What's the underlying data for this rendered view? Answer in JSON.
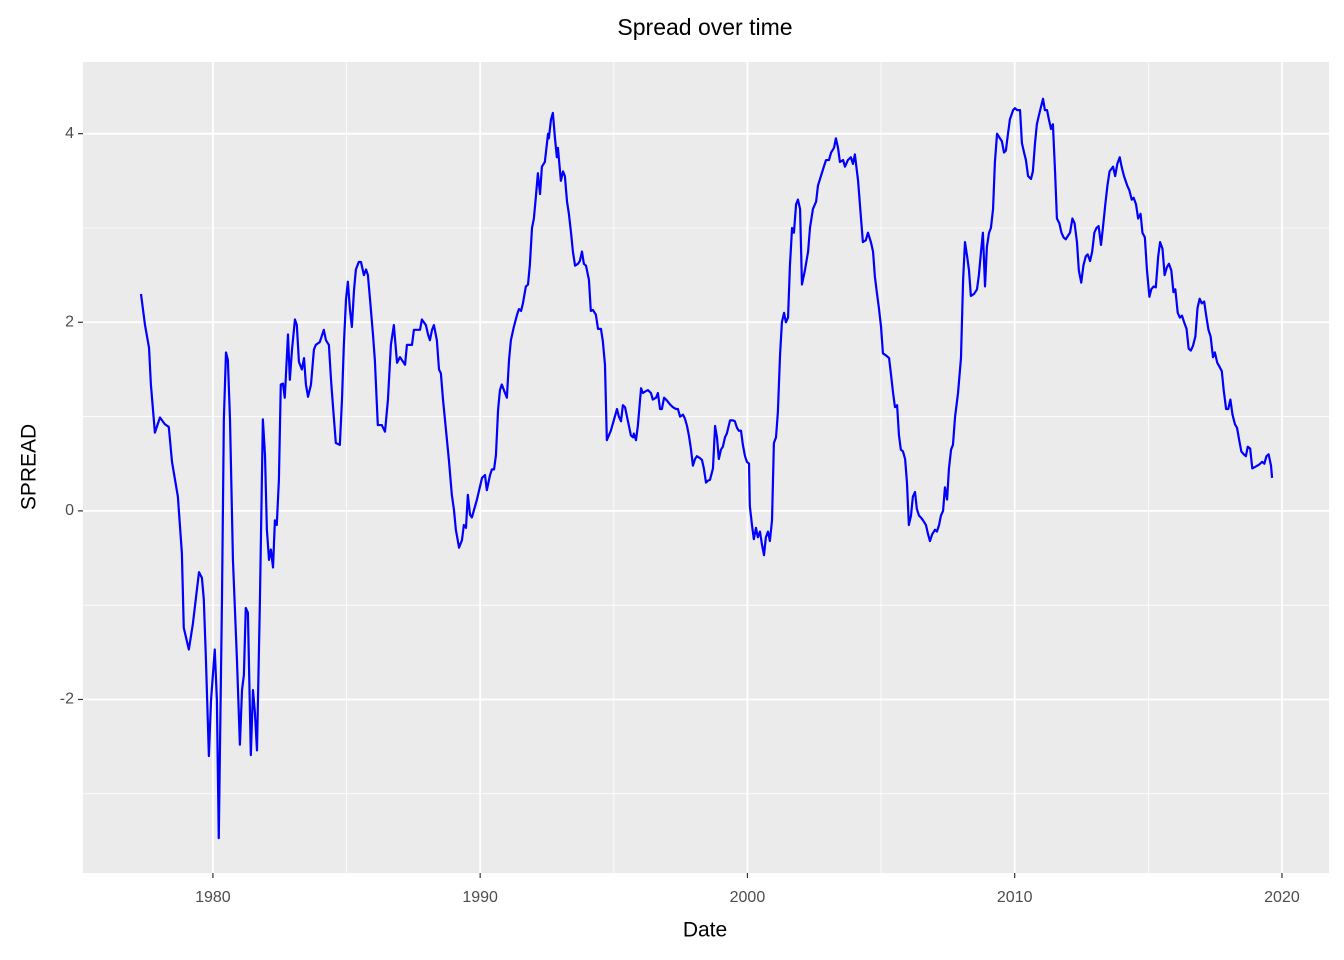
{
  "chart_data": {
    "type": "line",
    "title": "Spread over time",
    "x_label": "Date",
    "y_label": "SPREAD",
    "color": "blue",
    "grid": true,
    "xlim": [
      1975.14,
      2021.76
    ],
    "ylim": [
      -3.84,
      4.76
    ],
    "xticks": [
      1980,
      1990,
      2000,
      2010,
      2020
    ],
    "yticks": [
      -2,
      0,
      2,
      4
    ],
    "x": [
      1977.31,
      1977.46,
      1977.61,
      1977.68,
      1977.83,
      1978.02,
      1978.2,
      1978.35,
      1978.47,
      1978.69,
      1978.84,
      1978.91,
      1979.1,
      1979.25,
      1979.48,
      1979.59,
      1979.66,
      1979.74,
      1979.85,
      1979.93,
      1980.07,
      1980.15,
      1980.22,
      1980.34,
      1980.41,
      1980.49,
      1980.56,
      1980.64,
      1980.75,
      1980.9,
      1981.01,
      1981.09,
      1981.16,
      1981.23,
      1981.31,
      1981.42,
      1981.5,
      1981.57,
      1981.65,
      1981.76,
      1981.87,
      1981.95,
      1982.02,
      1982.1,
      1982.17,
      1982.25,
      1982.32,
      1982.39,
      1982.47,
      1982.54,
      1982.62,
      1982.69,
      1982.81,
      1982.88,
      1982.96,
      1983.07,
      1983.14,
      1983.22,
      1983.33,
      1983.41,
      1983.48,
      1983.56,
      1983.67,
      1983.78,
      1983.85,
      1984.0,
      1984.15,
      1984.23,
      1984.34,
      1984.42,
      1984.49,
      1984.6,
      1984.75,
      1984.83,
      1984.9,
      1984.98,
      1985.05,
      1985.13,
      1985.2,
      1985.28,
      1985.35,
      1985.46,
      1985.54,
      1985.65,
      1985.73,
      1985.8,
      1985.88,
      1985.99,
      1986.06,
      1986.17,
      1986.32,
      1986.44,
      1986.55,
      1986.66,
      1986.77,
      1986.89,
      1987.0,
      1987.19,
      1987.26,
      1987.45,
      1987.52,
      1987.75,
      1987.82,
      1987.97,
      1988.05,
      1988.12,
      1988.2,
      1988.27,
      1988.38,
      1988.46,
      1988.53,
      1988.61,
      1988.72,
      1988.83,
      1988.94,
      1989.02,
      1989.09,
      1989.21,
      1989.32,
      1989.39,
      1989.47,
      1989.54,
      1989.62,
      1989.69,
      1989.88,
      1990.07,
      1990.18,
      1990.25,
      1990.37,
      1990.44,
      1990.52,
      1990.59,
      1990.67,
      1990.74,
      1990.81,
      1990.93,
      1991.0,
      1991.08,
      1991.15,
      1991.26,
      1991.38,
      1991.45,
      1991.53,
      1991.6,
      1991.71,
      1991.79,
      1991.86,
      1991.94,
      1992.01,
      1992.09,
      1992.16,
      1992.24,
      1992.31,
      1992.42,
      1992.54,
      1992.57,
      1992.65,
      1992.72,
      1992.8,
      1992.87,
      1992.91,
      1993.02,
      1993.1,
      1993.17,
      1993.25,
      1993.32,
      1993.4,
      1993.47,
      1993.55,
      1993.66,
      1993.73,
      1993.81,
      1993.88,
      1993.96,
      1994.07,
      1994.14,
      1994.22,
      1994.33,
      1994.41,
      1994.52,
      1994.59,
      1994.67,
      1994.74,
      1994.89,
      1995.04,
      1995.12,
      1995.19,
      1995.27,
      1995.34,
      1995.42,
      1995.53,
      1995.64,
      1995.72,
      1995.75,
      1995.83,
      1995.9,
      1996.02,
      1996.09,
      1996.2,
      1996.28,
      1996.39,
      1996.46,
      1996.58,
      1996.65,
      1996.73,
      1996.8,
      1996.88,
      1996.99,
      1997.1,
      1997.21,
      1997.33,
      1997.4,
      1997.48,
      1997.59,
      1997.66,
      1997.74,
      1997.81,
      1997.89,
      1997.96,
      1998.04,
      1998.11,
      1998.22,
      1998.3,
      1998.37,
      1998.45,
      1998.52,
      1998.6,
      1998.71,
      1998.79,
      1998.86,
      1998.93,
      1999.01,
      1999.08,
      1999.16,
      1999.23,
      1999.35,
      1999.46,
      1999.53,
      1999.61,
      1999.68,
      1999.76,
      1999.83,
      1999.91,
      1999.98,
      2000.06,
      2000.09,
      2000.17,
      2000.24,
      2000.32,
      2000.39,
      2000.47,
      2000.54,
      2000.62,
      2000.69,
      2000.77,
      2000.84,
      2000.92,
      2000.99,
      2001.07,
      2001.14,
      2001.22,
      2001.29,
      2001.37,
      2001.44,
      2001.52,
      2001.59,
      2001.67,
      2001.74,
      2001.82,
      2001.89,
      2001.97,
      2002.04,
      2002.15,
      2002.27,
      2002.34,
      2002.45,
      2002.57,
      2002.64,
      2002.75,
      2002.86,
      2002.94,
      2003.05,
      2003.13,
      2003.24,
      2003.31,
      2003.39,
      2003.46,
      2003.58,
      2003.65,
      2003.76,
      2003.87,
      2003.95,
      2004.02,
      2004.14,
      2004.25,
      2004.32,
      2004.43,
      2004.51,
      2004.62,
      2004.7,
      2004.77,
      2004.85,
      2004.92,
      2005.0,
      2005.07,
      2005.18,
      2005.3,
      2005.37,
      2005.45,
      2005.52,
      2005.6,
      2005.67,
      2005.74,
      2005.82,
      2005.9,
      2005.97,
      2006.04,
      2006.12,
      2006.19,
      2006.27,
      2006.34,
      2006.42,
      2006.49,
      2006.57,
      2006.68,
      2006.76,
      2006.83,
      2006.91,
      2007.02,
      2007.09,
      2007.17,
      2007.24,
      2007.32,
      2007.39,
      2007.47,
      2007.54,
      2007.62,
      2007.69,
      2007.77,
      2007.88,
      2007.99,
      2008.07,
      2008.14,
      2008.22,
      2008.29,
      2008.36,
      2008.48,
      2008.59,
      2008.66,
      2008.74,
      2008.81,
      2008.89,
      2008.96,
      2009.04,
      2009.11,
      2009.19,
      2009.26,
      2009.34,
      2009.45,
      2009.52,
      2009.6,
      2009.67,
      2009.75,
      2009.82,
      2009.94,
      2010.01,
      2010.09,
      2010.2,
      2010.27,
      2010.35,
      2010.42,
      2010.5,
      2010.61,
      2010.68,
      2010.76,
      2010.83,
      2010.91,
      2010.98,
      2011.06,
      2011.13,
      2011.21,
      2011.28,
      2011.36,
      2011.43,
      2011.51,
      2011.58,
      2011.67,
      2011.75,
      2011.83,
      2011.91,
      2012.0,
      2012.07,
      2012.16,
      2012.24,
      2012.33,
      2012.4,
      2012.49,
      2012.57,
      2012.66,
      2012.73,
      2012.82,
      2012.9,
      2012.98,
      2013.06,
      2013.14,
      2013.23,
      2013.3,
      2013.39,
      2013.47,
      2013.55,
      2013.68,
      2013.76,
      2013.84,
      2013.93,
      2014.0,
      2014.09,
      2014.21,
      2014.29,
      2014.38,
      2014.45,
      2014.54,
      2014.62,
      2014.71,
      2014.78,
      2014.87,
      2014.95,
      2015.04,
      2015.11,
      2015.2,
      2015.28,
      2015.37,
      2015.44,
      2015.53,
      2015.61,
      2015.69,
      2015.77,
      2015.86,
      2015.94,
      2016.01,
      2016.1,
      2016.18,
      2016.26,
      2016.34,
      2016.43,
      2016.51,
      2016.59,
      2016.67,
      2016.76,
      2016.84,
      2016.92,
      2017.0,
      2017.09,
      2017.16,
      2017.25,
      2017.33,
      2017.42,
      2017.49,
      2017.58,
      2017.66,
      2017.75,
      2017.82,
      2017.91,
      2017.99,
      2018.07,
      2018.15,
      2018.24,
      2018.32,
      2018.4,
      2018.48,
      2018.57,
      2018.65,
      2018.72,
      2018.81,
      2018.89,
      2019.02,
      2019.14,
      2019.26,
      2019.34,
      2019.42,
      2019.5,
      2019.59,
      2019.63
    ],
    "values": [
      2.3,
      1.97,
      1.73,
      1.34,
      0.83,
      0.99,
      0.92,
      0.89,
      0.52,
      0.15,
      -0.45,
      -1.24,
      -1.47,
      -1.2,
      -0.65,
      -0.71,
      -0.94,
      -1.58,
      -2.6,
      -2.01,
      -1.47,
      -2.01,
      -3.47,
      -0.94,
      0.97,
      1.68,
      1.6,
      0.97,
      -0.52,
      -1.58,
      -2.48,
      -1.9,
      -1.74,
      -1.03,
      -1.08,
      -2.59,
      -1.9,
      -2.13,
      -2.54,
      -0.94,
      0.97,
      0.59,
      -0.2,
      -0.52,
      -0.41,
      -0.6,
      -0.1,
      -0.15,
      0.33,
      1.34,
      1.35,
      1.2,
      1.87,
      1.39,
      1.71,
      2.03,
      1.97,
      1.58,
      1.5,
      1.62,
      1.34,
      1.21,
      1.34,
      1.71,
      1.76,
      1.79,
      1.92,
      1.81,
      1.76,
      1.39,
      1.12,
      0.72,
      0.7,
      1.18,
      1.76,
      2.24,
      2.43,
      2.13,
      1.95,
      2.34,
      2.56,
      2.64,
      2.64,
      2.5,
      2.56,
      2.5,
      2.24,
      1.87,
      1.6,
      0.91,
      0.91,
      0.84,
      1.18,
      1.76,
      1.97,
      1.57,
      1.63,
      1.55,
      1.76,
      1.76,
      1.92,
      1.92,
      2.03,
      1.97,
      1.87,
      1.81,
      1.92,
      1.97,
      1.81,
      1.5,
      1.46,
      1.18,
      0.86,
      0.54,
      0.17,
      0.01,
      -0.2,
      -0.39,
      -0.31,
      -0.15,
      -0.18,
      0.17,
      -0.04,
      -0.07,
      0.12,
      0.35,
      0.38,
      0.22,
      0.38,
      0.44,
      0.44,
      0.59,
      1.07,
      1.28,
      1.34,
      1.25,
      1.2,
      1.6,
      1.81,
      1.95,
      2.08,
      2.14,
      2.12,
      2.2,
      2.38,
      2.4,
      2.61,
      3.0,
      3.1,
      3.35,
      3.58,
      3.36,
      3.65,
      3.7,
      4.0,
      3.95,
      4.15,
      4.22,
      3.95,
      3.75,
      3.85,
      3.5,
      3.6,
      3.55,
      3.28,
      3.15,
      2.95,
      2.75,
      2.6,
      2.62,
      2.65,
      2.75,
      2.62,
      2.6,
      2.45,
      2.12,
      2.13,
      2.08,
      1.93,
      1.93,
      1.8,
      1.55,
      0.75,
      0.85,
      1.0,
      1.08,
      1.0,
      0.95,
      1.12,
      1.1,
      0.95,
      0.8,
      0.78,
      0.82,
      0.75,
      0.9,
      1.3,
      1.25,
      1.27,
      1.28,
      1.25,
      1.18,
      1.2,
      1.25,
      1.08,
      1.08,
      1.2,
      1.17,
      1.13,
      1.1,
      1.08,
      1.08,
      1.0,
      1.02,
      0.98,
      0.9,
      0.8,
      0.65,
      0.48,
      0.55,
      0.58,
      0.56,
      0.54,
      0.45,
      0.3,
      0.32,
      0.33,
      0.45,
      0.9,
      0.78,
      0.55,
      0.65,
      0.68,
      0.78,
      0.82,
      0.96,
      0.96,
      0.95,
      0.88,
      0.85,
      0.85,
      0.7,
      0.58,
      0.52,
      0.5,
      0.05,
      -0.15,
      -0.3,
      -0.18,
      -0.28,
      -0.22,
      -0.35,
      -0.47,
      -0.28,
      -0.22,
      -0.32,
      -0.1,
      0.72,
      0.78,
      1.05,
      1.65,
      2.0,
      2.1,
      2.0,
      2.05,
      2.6,
      3.0,
      2.95,
      3.25,
      3.3,
      3.2,
      2.4,
      2.55,
      2.75,
      3.0,
      3.2,
      3.28,
      3.45,
      3.55,
      3.65,
      3.72,
      3.72,
      3.8,
      3.85,
      3.95,
      3.85,
      3.7,
      3.72,
      3.65,
      3.72,
      3.75,
      3.68,
      3.78,
      3.5,
      3.1,
      2.85,
      2.87,
      2.95,
      2.85,
      2.75,
      2.48,
      2.3,
      2.15,
      1.95,
      1.67,
      1.65,
      1.62,
      1.45,
      1.25,
      1.1,
      1.12,
      0.8,
      0.65,
      0.63,
      0.55,
      0.3,
      -0.15,
      -0.05,
      0.15,
      0.2,
      0.02,
      -0.05,
      -0.07,
      -0.1,
      -0.15,
      -0.25,
      -0.32,
      -0.25,
      -0.2,
      -0.22,
      -0.15,
      -0.05,
      0.0,
      0.25,
      0.12,
      0.45,
      0.65,
      0.7,
      1.0,
      1.25,
      1.62,
      2.45,
      2.85,
      2.7,
      2.55,
      2.28,
      2.3,
      2.35,
      2.5,
      2.75,
      2.95,
      2.38,
      2.8,
      2.95,
      3.0,
      3.2,
      3.7,
      4.0,
      3.95,
      3.92,
      3.8,
      3.82,
      4.0,
      4.15,
      4.25,
      4.27,
      4.25,
      4.25,
      3.9,
      3.8,
      3.72,
      3.55,
      3.52,
      3.6,
      3.9,
      4.1,
      4.2,
      4.28,
      4.37,
      4.25,
      4.25,
      4.15,
      4.05,
      4.1,
      3.6,
      3.1,
      3.05,
      2.95,
      2.9,
      2.88,
      2.92,
      2.95,
      3.1,
      3.05,
      2.85,
      2.55,
      2.42,
      2.6,
      2.7,
      2.72,
      2.65,
      2.75,
      2.95,
      3.0,
      3.02,
      2.82,
      3.0,
      3.25,
      3.45,
      3.6,
      3.65,
      3.55,
      3.68,
      3.75,
      3.65,
      3.55,
      3.45,
      3.4,
      3.3,
      3.32,
      3.25,
      3.1,
      3.15,
      2.95,
      2.9,
      2.55,
      2.27,
      2.35,
      2.38,
      2.37,
      2.7,
      2.85,
      2.78,
      2.5,
      2.58,
      2.62,
      2.55,
      2.32,
      2.35,
      2.1,
      2.05,
      2.07,
      2.0,
      1.93,
      1.72,
      1.7,
      1.75,
      1.85,
      2.15,
      2.25,
      2.2,
      2.22,
      2.08,
      1.92,
      1.85,
      1.63,
      1.68,
      1.57,
      1.53,
      1.48,
      1.28,
      1.08,
      1.08,
      1.18,
      1.02,
      0.92,
      0.88,
      0.75,
      0.63,
      0.6,
      0.58,
      0.68,
      0.66,
      0.45,
      0.47,
      0.49,
      0.52,
      0.5,
      0.58,
      0.6,
      0.48,
      0.35
    ]
  }
}
